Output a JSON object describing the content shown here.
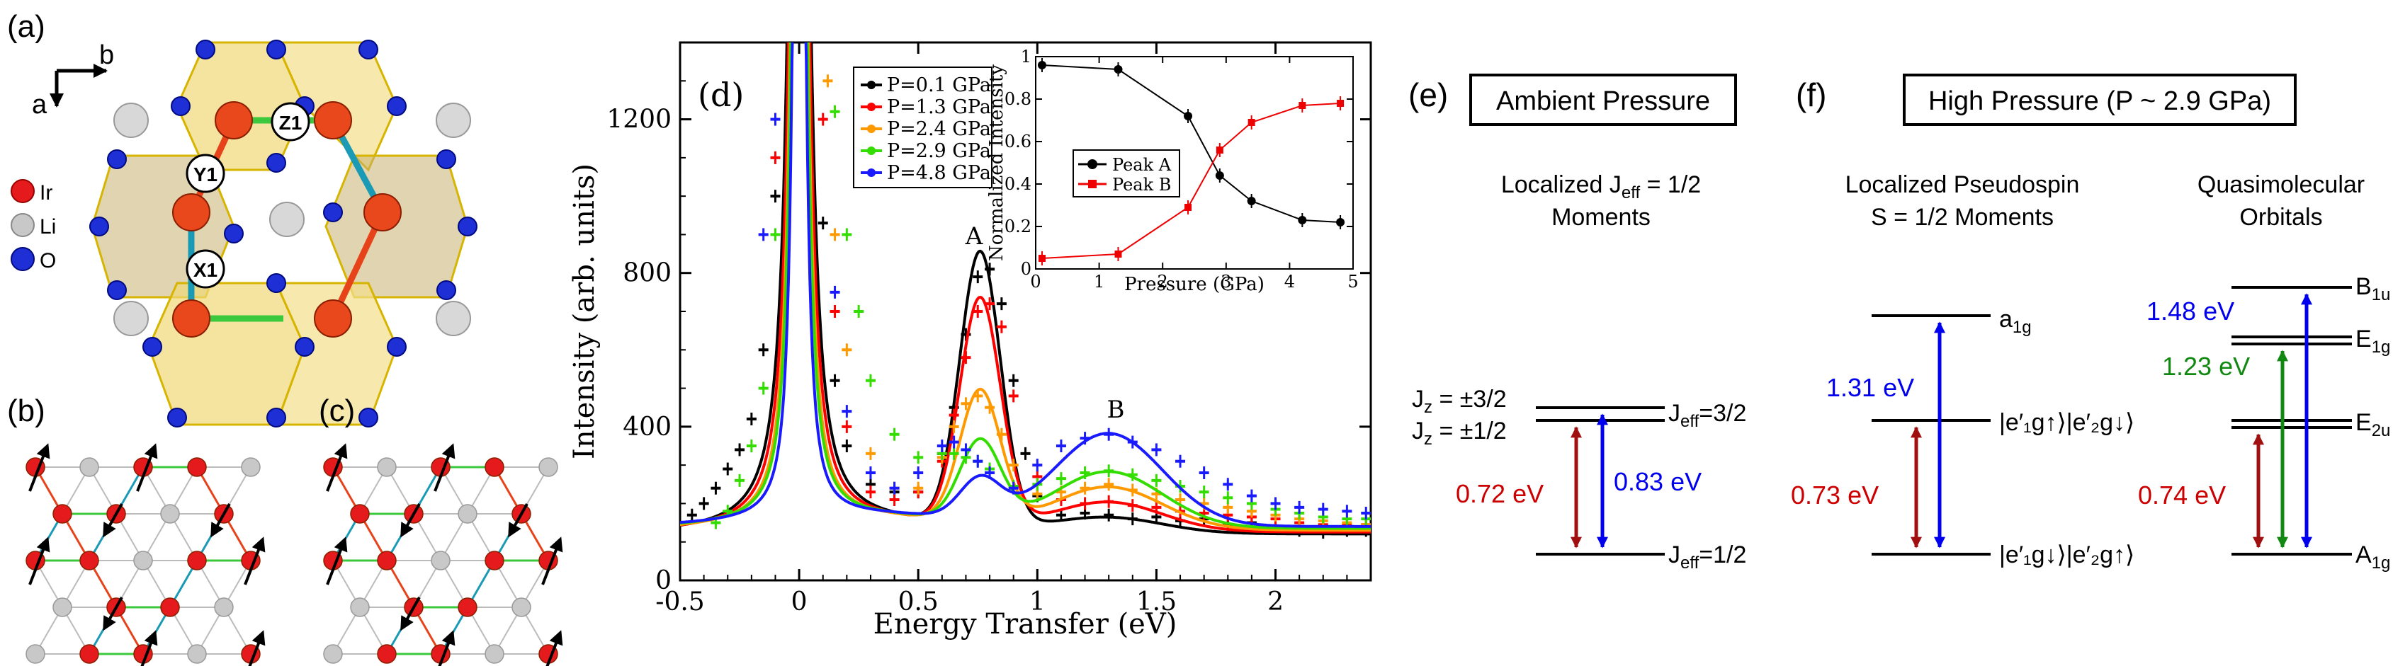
{
  "panel_labels": {
    "a": "(a)",
    "b": "(b)",
    "c": "(c)",
    "d": "(d)",
    "e": "(e)",
    "f": "(f)"
  },
  "panel_a": {
    "axis_b": "b",
    "axis_a": "a",
    "legend": [
      {
        "label": "Ir",
        "color": "#e41a1c"
      },
      {
        "label": "Li",
        "color": "#c0c0c0"
      },
      {
        "label": "O",
        "color": "#1f2fd6"
      }
    ],
    "bond_labels": [
      "Z1",
      "Y1",
      "X1"
    ],
    "colors": {
      "octahedron": "#f0d878",
      "edge": "#d6b400",
      "x_bond": "#1a9ab5",
      "y_bond": "#e7431a",
      "z_bond": "#3cc83c"
    }
  },
  "chart_data": {
    "type": "line",
    "main": {
      "title": "",
      "xlabel": "Energy Transfer (eV)",
      "ylabel": "Intensity (arb. units)",
      "xlim": [
        -0.5,
        2.4
      ],
      "ylim": [
        0,
        1400
      ],
      "xticks": [
        -0.5,
        0,
        0.5,
        1,
        1.5,
        2
      ],
      "xtick_labels": [
        "-0.5",
        "0",
        "0.5",
        "1",
        "1.5",
        "2"
      ],
      "yticks": [
        0,
        400,
        800,
        1200
      ],
      "ytick_labels": [
        "0",
        "400",
        "800",
        "1200"
      ],
      "annotations": [
        {
          "text": "A",
          "x": 0.77,
          "y": 850
        },
        {
          "text": "B",
          "x": 1.32,
          "y": 405
        }
      ],
      "series": [
        {
          "name": "P=0.1 GPa",
          "color": "#000000",
          "peakA": 830,
          "peakB": 160,
          "el_w": 0.16,
          "bg": 120,
          "x": [
            -0.45,
            -0.4,
            -0.35,
            -0.3,
            -0.25,
            -0.2,
            -0.15,
            -0.1,
            0.1,
            0.15,
            0.2,
            0.3,
            0.4,
            0.5,
            0.6,
            0.65,
            0.7,
            0.75,
            0.8,
            0.85,
            0.9,
            0.95,
            1.0,
            1.1,
            1.2,
            1.3,
            1.4,
            1.5,
            1.6,
            1.7,
            1.8,
            1.9,
            2.0,
            2.1,
            2.2,
            2.3,
            2.38
          ],
          "y": [
            170,
            200,
            240,
            290,
            340,
            420,
            600,
            1000,
            930,
            520,
            350,
            250,
            230,
            230,
            330,
            450,
            640,
            790,
            810,
            720,
            520,
            330,
            220,
            170,
            175,
            170,
            160,
            165,
            155,
            160,
            145,
            150,
            140,
            130,
            125,
            130,
            130
          ]
        },
        {
          "name": "P=1.3 GPa",
          "color": "#ff0000",
          "peakA": 710,
          "peakB": 200,
          "el_w": 0.14,
          "bg": 125,
          "x": [
            -0.1,
            0.1,
            0.15,
            0.2,
            0.3,
            0.4,
            0.5,
            0.6,
            0.65,
            0.7,
            0.75,
            0.8,
            0.85,
            0.9,
            1.0,
            1.1,
            1.2,
            1.3,
            1.4,
            1.5,
            1.6,
            1.7,
            1.8,
            1.9,
            2.0,
            2.1,
            2.2,
            2.3,
            2.38
          ],
          "y": [
            1100,
            1200,
            700,
            400,
            230,
            210,
            230,
            310,
            430,
            580,
            700,
            720,
            660,
            480,
            270,
            210,
            200,
            205,
            195,
            190,
            180,
            175,
            170,
            165,
            160,
            150,
            145,
            145,
            145
          ]
        },
        {
          "name": "P=2.4 GPa",
          "color": "#ff9900",
          "peakA": 470,
          "peakB": 240,
          "el_w": 0.12,
          "bg": 130,
          "x": [
            0.12,
            0.15,
            0.2,
            0.3,
            0.4,
            0.5,
            0.6,
            0.65,
            0.7,
            0.75,
            0.8,
            0.85,
            0.9,
            1.0,
            1.1,
            1.2,
            1.3,
            1.4,
            1.5,
            1.6,
            1.7,
            1.8,
            1.9,
            2.0,
            2.1,
            2.2,
            2.3,
            2.38
          ],
          "y": [
            1300,
            900,
            600,
            330,
            240,
            240,
            320,
            400,
            460,
            480,
            450,
            380,
            300,
            225,
            230,
            240,
            250,
            235,
            225,
            210,
            200,
            190,
            180,
            170,
            160,
            155,
            150,
            145
          ]
        },
        {
          "name": "P=2.9 GPa",
          "color": "#33dd00",
          "peakA": 340,
          "peakB": 280,
          "el_w": 0.11,
          "bg": 135,
          "x": [
            -0.35,
            -0.3,
            -0.25,
            -0.2,
            -0.15,
            -0.1,
            0.15,
            0.2,
            0.25,
            0.3,
            0.4,
            0.5,
            0.6,
            0.65,
            0.7,
            0.75,
            0.8,
            0.9,
            1.0,
            1.1,
            1.2,
            1.3,
            1.4,
            1.5,
            1.6,
            1.7,
            1.8,
            1.9,
            2.0,
            2.1,
            2.2,
            2.3,
            2.38
          ],
          "y": [
            150,
            180,
            260,
            350,
            500,
            900,
            1220,
            900,
            700,
            520,
            380,
            320,
            330,
            330,
            320,
            310,
            290,
            245,
            250,
            265,
            280,
            285,
            275,
            260,
            245,
            230,
            215,
            200,
            185,
            175,
            165,
            160,
            160
          ]
        },
        {
          "name": "P=4.8 GPa",
          "color": "#1a1aff",
          "peakA": 240,
          "peakB": 380,
          "el_w": 0.09,
          "bg": 140,
          "x": [
            -0.15,
            -0.1,
            0.15,
            0.2,
            0.3,
            0.4,
            0.5,
            0.6,
            0.65,
            0.7,
            0.75,
            0.8,
            0.9,
            1.0,
            1.1,
            1.2,
            1.3,
            1.4,
            1.5,
            1.6,
            1.7,
            1.8,
            1.9,
            2.0,
            2.1,
            2.2,
            2.3,
            2.38
          ],
          "y": [
            900,
            1200,
            750,
            440,
            280,
            240,
            280,
            350,
            360,
            340,
            310,
            280,
            240,
            300,
            350,
            370,
            380,
            360,
            340,
            310,
            280,
            250,
            220,
            200,
            190,
            185,
            180,
            175
          ]
        }
      ]
    },
    "inset": {
      "type": "line",
      "xlabel": "Pressure (GPa)",
      "ylabel": "Normalized Intensity",
      "xlim": [
        0,
        5
      ],
      "ylim": [
        0,
        1
      ],
      "xticks": [
        0,
        1,
        2,
        3,
        4,
        5
      ],
      "xtick_labels": [
        "0",
        "1",
        "2",
        "3",
        "4",
        "5"
      ],
      "yticks": [
        0,
        0.2,
        0.4,
        0.6,
        0.8,
        1
      ],
      "ytick_labels": [
        "0",
        "0.2",
        "0.4",
        "0.6",
        "0.8",
        "1"
      ],
      "series": [
        {
          "name": "Peak A",
          "color": "#000000",
          "marker": "circle",
          "x": [
            0.1,
            1.3,
            2.4,
            2.9,
            3.4,
            4.2,
            4.8
          ],
          "y": [
            0.96,
            0.94,
            0.72,
            0.44,
            0.32,
            0.23,
            0.22
          ]
        },
        {
          "name": "Peak B",
          "color": "#ee0000",
          "marker": "square",
          "x": [
            0.1,
            1.3,
            2.4,
            2.9,
            3.4,
            4.2,
            4.8
          ],
          "y": [
            0.05,
            0.07,
            0.29,
            0.56,
            0.69,
            0.77,
            0.78
          ]
        }
      ]
    }
  },
  "panel_e": {
    "title": "Ambient Pressure",
    "subtitle1": "Localized J",
    "subtitle1_sub": "eff",
    "subtitle1_tail": " = 1/2",
    "subtitle2": "Moments",
    "level_upper1": "J",
    "level_upper1_sub": "z",
    "level_upper1_tail": " = ±3/2",
    "level_upper2_tail": " = ±1/2",
    "level_right_upper": "J",
    "level_right_upper_sub": "eff",
    "level_right_upper_tail": "=3/2",
    "level_right_lower_tail": "=1/2",
    "energy_red": "0.72 eV",
    "energy_blue": "0.83 eV",
    "colors": {
      "red": "#cc0000",
      "blue": "#0000ee",
      "darkred": "#a01010"
    }
  },
  "panel_f": {
    "title": "High Pressure (P ~ 2.9 GPa)",
    "col1_line1": "Localized Pseudospin",
    "col1_line2": "S = 1/2 Moments",
    "col2_line1": "Quasimolecular",
    "col2_line2": "Orbitals",
    "level_a1g": "a",
    "level_a1g_sub": "1g",
    "ket_mid": "|e′₁g↑⟩|e′₂g↓⟩",
    "ket_low": "|e′₁g↓⟩|e′₂g↑⟩",
    "energy_red1": "0.73 eV",
    "energy_blue1": "1.31 eV",
    "energy_blue2": "1.48 eV",
    "energy_green2": "1.23 eV",
    "energy_red2": "0.74 eV",
    "levels_right": [
      {
        "main": "B",
        "sub": "1u"
      },
      {
        "main": "E",
        "sub": "1g"
      },
      {
        "main": "E",
        "sub": "2u"
      },
      {
        "main": "A",
        "sub": "1g"
      }
    ],
    "colors": {
      "red": "#cc0000",
      "blue": "#0000ee",
      "green": "#118811",
      "darkred": "#a01010"
    }
  }
}
